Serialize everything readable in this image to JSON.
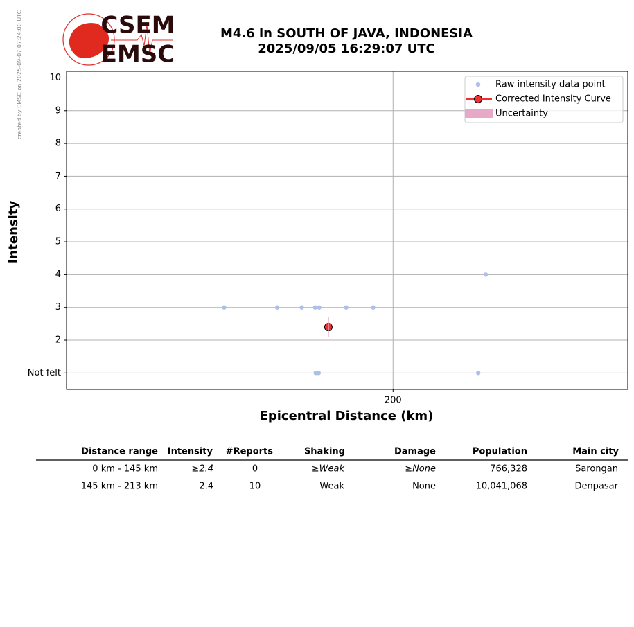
{
  "credit": "created by EMSC on 2025-09-07 07:24:00 UTC",
  "logo": {
    "top": "CSEM",
    "bottom": "EMSC"
  },
  "chart_data": {
    "type": "scatter",
    "title": "M4.6 in SOUTH OF JAVA, INDONESIA",
    "subtitle": "2025/09/05 16:29:07 UTC",
    "x_label": "Epicentral Distance (km)",
    "y_label": "Intensity",
    "xscale": "log",
    "xlim": [
      104,
      320
    ],
    "xticks": [
      200
    ],
    "ylim": [
      0.5,
      10.2
    ],
    "yticks": [
      {
        "value": 1,
        "label": "Not felt"
      },
      2,
      3,
      4,
      5,
      6,
      7,
      8,
      9,
      10
    ],
    "grid": true,
    "legend": "upper right",
    "series": [
      {
        "name": "Raw intensity data point",
        "color": "#aec0e8",
        "x": [
          142.6,
          158.6,
          166.6,
          171.1,
          172.5,
          182.1,
          192.2,
          240.8,
          171.3,
          172.3,
          237.2
        ],
        "values": [
          3,
          3,
          3,
          3,
          3,
          3,
          3,
          4,
          1,
          1,
          1
        ]
      },
      {
        "name": "Corrected Intensity Curve",
        "color": "#f03030",
        "x": [
          175.7
        ],
        "values": [
          2.4
        ]
      },
      {
        "name": "Uncertainty",
        "color": "#e8a8c8",
        "x": [
          175.7
        ],
        "lower": [
          2.1
        ],
        "upper": [
          2.7
        ]
      }
    ]
  },
  "table": {
    "columns": [
      "Distance range",
      "Intensity",
      "#Reports",
      "Shaking",
      "Damage",
      "Population",
      "Main city"
    ],
    "rows": [
      [
        "0 km -  145 km",
        "≥2.4",
        "0",
        "≥Weak",
        "≥None",
        "766,328",
        "Sarongan"
      ],
      [
        "145 km -  213 km",
        "2.4",
        "10",
        "Weak",
        "None",
        "10,041,068",
        "Denpasar"
      ]
    ]
  }
}
